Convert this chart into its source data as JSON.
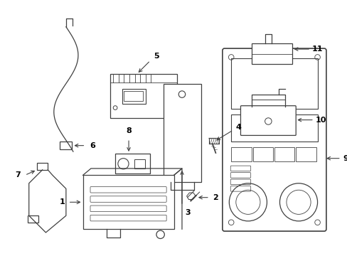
{
  "background_color": "#ffffff",
  "line_color": "#404040",
  "text_color": "#000000",
  "figsize": [
    4.89,
    3.6
  ],
  "dpi": 100
}
